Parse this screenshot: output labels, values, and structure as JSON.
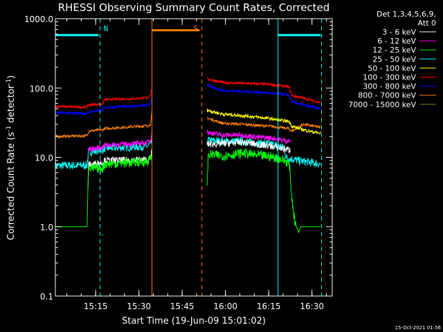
{
  "chart_data": {
    "type": "line",
    "title": "RHESSI Observing Summary Count Rates, Corrected",
    "xlabel": "Start Time (19-Jun-09 15:01:02)",
    "ylabel_main": "Corrected Count Rate (s",
    "ylabel_sup1": "-1",
    "ylabel_mid": " detector",
    "ylabel_sup2": "-1",
    "ylabel_end": ")",
    "yscale": "log",
    "ylim": [
      0.1,
      1000
    ],
    "xlim_minutes": [
      0,
      96
    ],
    "y_ticks": [
      {
        "value": 0.1,
        "label": "0.1"
      },
      {
        "value": 1,
        "label": "1.0"
      },
      {
        "value": 10,
        "label": "10.0"
      },
      {
        "value": 100,
        "label": "100.0"
      },
      {
        "value": 1000,
        "label": "1000.0"
      }
    ],
    "x_ticks": [
      {
        "minute": 13.97,
        "label": "15:15"
      },
      {
        "minute": 28.97,
        "label": "15:30"
      },
      {
        "minute": 43.97,
        "label": "15:45"
      },
      {
        "minute": 58.97,
        "label": "16:00"
      },
      {
        "minute": 73.97,
        "label": "16:15"
      },
      {
        "minute": 88.97,
        "label": "16:30"
      }
    ],
    "legend_header": [
      "Det 1,3,4,5,6,9,",
      "Att 0"
    ],
    "legend_placement": "right",
    "series": [
      {
        "name": "3 - 6 keV",
        "color": "#ffffff",
        "noise": 0.05,
        "segments": [
          [
            [
              11.3,
              3.8
            ],
            [
              11.5,
              7.8
            ],
            [
              16.5,
              8.5
            ],
            [
              17,
              9.0
            ],
            [
              32,
              9.2
            ],
            [
              33,
              9.6
            ],
            [
              33.5,
              13
            ]
          ],
          [
            [
              52.6,
              15.5
            ],
            [
              58,
              15.8
            ],
            [
              65,
              16.5
            ],
            [
              69,
              15.6
            ],
            [
              75,
              14.5
            ],
            [
              78,
              13.5
            ],
            [
              81.5,
              12.8
            ]
          ]
        ]
      },
      {
        "name": "6 - 12 keV",
        "color": "#ff00ff",
        "noise": 0.04,
        "segments": [
          [
            [
              11.3,
              13
            ],
            [
              16.5,
              14
            ],
            [
              17,
              15
            ],
            [
              30,
              16
            ],
            [
              32,
              16.5
            ],
            [
              33,
              17.5
            ],
            [
              33.5,
              25
            ]
          ],
          [
            [
              52.6,
              23
            ],
            [
              58,
              21
            ],
            [
              65,
              21
            ],
            [
              70,
              19.5
            ],
            [
              75,
              19
            ],
            [
              78,
              18
            ],
            [
              81.5,
              17
            ]
          ]
        ]
      },
      {
        "name": "12 - 25 keV",
        "color": "#00ff00",
        "noise": 0.07,
        "segments": [
          [
            [
              0,
              1.0
            ],
            [
              11,
              1.0
            ],
            [
              11.3,
              4.5
            ],
            [
              11.5,
              6.8
            ],
            [
              16.5,
              7.0
            ],
            [
              17,
              8.0
            ],
            [
              32,
              8.7
            ],
            [
              33,
              9.5
            ],
            [
              33.5,
              12
            ]
          ],
          [
            [
              16.2,
              0.78
            ],
            [
              16.6,
              0.75
            ]
          ],
          [
            [
              52.6,
              4
            ],
            [
              53,
              11
            ],
            [
              58,
              10.5
            ],
            [
              65,
              11.5
            ],
            [
              69,
              10.8
            ],
            [
              75,
              10.2
            ],
            [
              78,
              9.5
            ],
            [
              80.5,
              8.5
            ],
            [
              81.2,
              7.5
            ],
            [
              82,
              2.5
            ],
            [
              83,
              1.2
            ],
            [
              84.3,
              0.82
            ],
            [
              85,
              1.0
            ],
            [
              92,
              1.0
            ]
          ]
        ]
      },
      {
        "name": "25 - 50 keV",
        "color": "#00ffff",
        "noise": 0.06,
        "segments": [
          [
            [
              0,
              7.6
            ],
            [
              11,
              7.7
            ],
            [
              11.5,
              12
            ],
            [
              16.5,
              13
            ],
            [
              17,
              13.5
            ],
            [
              32,
              14.5
            ],
            [
              33,
              15.5
            ],
            [
              33.5,
              18
            ]
          ],
          [
            [
              52.6,
              17.5
            ],
            [
              58,
              17
            ],
            [
              65,
              17
            ],
            [
              70,
              16
            ],
            [
              75,
              15.5
            ],
            [
              78,
              14.5
            ],
            [
              79.2,
              13.8
            ],
            [
              80,
              10
            ],
            [
              84,
              9.0
            ],
            [
              92,
              8.0
            ]
          ]
        ]
      },
      {
        "name": "50 - 100 keV",
        "color": "#ffff00",
        "noise": 0.025,
        "segments": [
          [
            [
              52.6,
              48
            ],
            [
              58,
              42
            ],
            [
              65,
              40
            ],
            [
              70,
              38
            ],
            [
              75,
              36
            ],
            [
              78,
              34
            ],
            [
              81,
              33
            ],
            [
              82,
              28
            ],
            [
              86,
              25
            ],
            [
              92,
              22
            ]
          ]
        ]
      },
      {
        "name": "100 - 300 keV",
        "color": "#ff0000",
        "noise": 0.02,
        "segments": [
          [
            [
              0,
              54
            ],
            [
              11,
              53
            ],
            [
              11.5,
              57
            ],
            [
              16.5,
              59
            ],
            [
              17,
              68
            ],
            [
              32,
              72
            ],
            [
              33,
              80
            ],
            [
              33.5,
              100
            ]
          ],
          [
            [
              52.6,
              135
            ],
            [
              58,
              120
            ],
            [
              65,
              117
            ],
            [
              70,
              115
            ],
            [
              75,
              112
            ],
            [
              78,
              108
            ],
            [
              81,
              104
            ],
            [
              82,
              78
            ],
            [
              86,
              72
            ],
            [
              92,
              61
            ]
          ]
        ]
      },
      {
        "name": "300 - 800 keV",
        "color": "#0000ff",
        "noise": 0.02,
        "segments": [
          [
            [
              0,
              44
            ],
            [
              11,
              43
            ],
            [
              11.5,
              45
            ],
            [
              16.5,
              48
            ],
            [
              17,
              53
            ],
            [
              32,
              56
            ],
            [
              33,
              60
            ],
            [
              33.5,
              80
            ]
          ],
          [
            [
              52.6,
              110
            ],
            [
              58,
              92
            ],
            [
              65,
              89
            ],
            [
              70,
              87
            ],
            [
              75,
              84
            ],
            [
              78,
              82
            ],
            [
              81,
              79
            ],
            [
              82,
              63
            ],
            [
              86,
              57
            ],
            [
              92,
              50
            ]
          ]
        ]
      },
      {
        "name": "800 - 7000 keV",
        "color": "#ff8000",
        "noise": 0.02,
        "segments": [
          [
            [
              0,
              20
            ],
            [
              11,
              20.5
            ],
            [
              11.5,
              24
            ],
            [
              16.5,
              25
            ],
            [
              17,
              26
            ],
            [
              32,
              28.5
            ],
            [
              33,
              30
            ],
            [
              33.5,
              45
            ]
          ],
          [
            [
              52.6,
              37
            ],
            [
              58,
              31
            ],
            [
              65,
              30
            ],
            [
              70,
              29
            ],
            [
              75,
              28
            ],
            [
              78,
              27
            ],
            [
              81,
              26
            ],
            [
              82,
              24
            ],
            [
              86,
              30
            ],
            [
              92,
              27
            ]
          ]
        ]
      },
      {
        "name": "7000 - 15000 keV",
        "color": "#808000",
        "noise": 0.0,
        "segments": []
      }
    ],
    "flags": [
      {
        "label": "N",
        "color": "#00ffff",
        "bars": [
          [
            0,
            15
          ],
          [
            77.2,
            92
          ]
        ],
        "bar_value": 580,
        "solid_lines": [
          0,
          77.2
        ],
        "dashed_lines": [
          15.5,
          92.3
        ]
      },
      {
        "label": "S",
        "color": "#ff8000",
        "bars": [
          [
            33.5,
            50
          ]
        ],
        "bar_value": 680,
        "solid_lines": [
          33.5
        ],
        "dashed_lines": [
          50.8
        ]
      }
    ],
    "timestamp": "15-Oct-2021 01:56"
  }
}
